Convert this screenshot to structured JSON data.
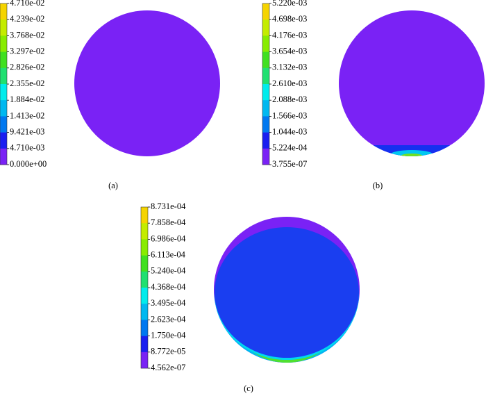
{
  "panels": [
    {
      "caption": "(a)",
      "colorbar": [
        "4.710e-02",
        "4.239e-02",
        "3.768e-02",
        "3.297e-02",
        "2.826e-02",
        "2.355e-02",
        "1.884e-02",
        "1.413e-02",
        "9.421e-03",
        "4.710e-03",
        "0.000e+00"
      ]
    },
    {
      "caption": "(b)",
      "colorbar": [
        "5.220e-03",
        "4.698e-03",
        "4.176e-03",
        "3.654e-03",
        "3.132e-03",
        "2.610e-03",
        "2.088e-03",
        "1.566e-03",
        "1.044e-03",
        "5.224e-04",
        "3.755e-07"
      ]
    },
    {
      "caption": "(c)",
      "colorbar": [
        "8.731e-04",
        "7.858e-04",
        "6.986e-04",
        "6.113e-04",
        "5.240e-04",
        "4.368e-04",
        "3.495e-04",
        "2.623e-04",
        "1.750e-04",
        "8.772e-05",
        "4.562e-07"
      ]
    }
  ]
}
